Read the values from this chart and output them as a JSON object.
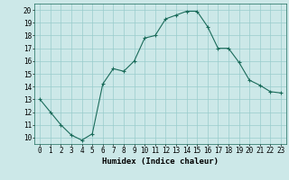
{
  "x": [
    0,
    1,
    2,
    3,
    4,
    5,
    6,
    7,
    8,
    9,
    10,
    11,
    12,
    13,
    14,
    15,
    16,
    17,
    18,
    19,
    20,
    21,
    22,
    23
  ],
  "y": [
    13,
    12,
    11,
    10.2,
    9.8,
    10.3,
    14.2,
    15.4,
    15.2,
    16.0,
    17.8,
    18.0,
    19.3,
    19.6,
    19.9,
    19.9,
    18.7,
    17.0,
    17.0,
    15.9,
    14.5,
    14.1,
    13.6,
    13.5
  ],
  "line_color": "#1a6b5a",
  "marker": "+",
  "bg_color": "#cce8e8",
  "grid_color": "#99cccc",
  "xlabel": "Humidex (Indice chaleur)",
  "ylim": [
    9.5,
    20.5
  ],
  "yticks": [
    10,
    11,
    12,
    13,
    14,
    15,
    16,
    17,
    18,
    19,
    20
  ],
  "xticks": [
    0,
    1,
    2,
    3,
    4,
    5,
    6,
    7,
    8,
    9,
    10,
    11,
    12,
    13,
    14,
    15,
    16,
    17,
    18,
    19,
    20,
    21,
    22,
    23
  ],
  "tick_fontsize": 5.5,
  "label_fontsize": 6.5
}
